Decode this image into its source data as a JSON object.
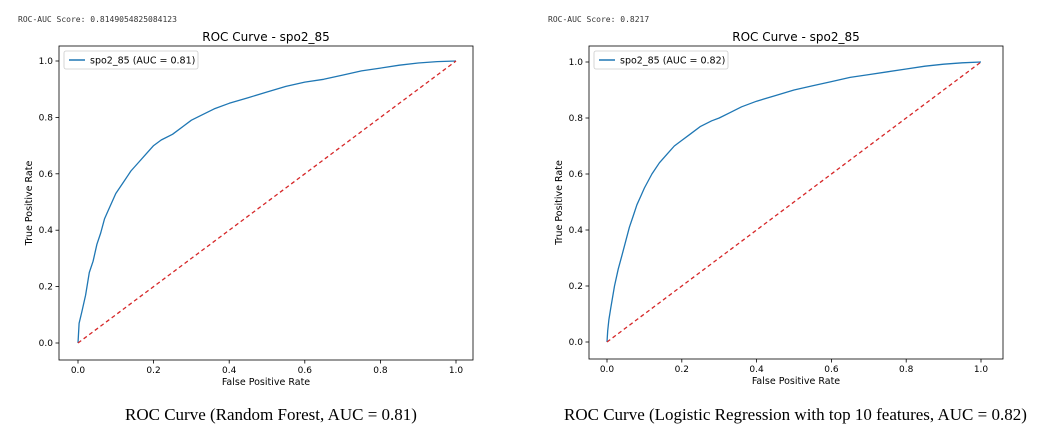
{
  "scores": [
    "ROC-AUC Score: 0.8149054825084123",
    "ROC-AUC Score: 0.8217"
  ],
  "captions": [
    "ROC Curve (Random Forest, AUC = 0.81)",
    "ROC Curve (Logistic Regression with top 10 features, AUC = 0.82)"
  ],
  "chart_data": [
    {
      "type": "line",
      "title": "ROC Curve - spo2_85",
      "xlabel": "False Positive Rate",
      "ylabel": "True Positive Rate",
      "xlim": [
        0.0,
        1.0
      ],
      "ylim": [
        0.0,
        1.0
      ],
      "xticks": [
        "0.0",
        "0.2",
        "0.4",
        "0.6",
        "0.8",
        "1.0"
      ],
      "yticks": [
        "0.0",
        "0.2",
        "0.4",
        "0.6",
        "0.8",
        "1.0"
      ],
      "legend_position": "upper-left",
      "grid": false,
      "series": [
        {
          "name": "spo2_85 (AUC = 0.81)",
          "color": "#1f77b4",
          "x": [
            0.0,
            0.003,
            0.01,
            0.02,
            0.03,
            0.04,
            0.05,
            0.06,
            0.07,
            0.08,
            0.09,
            0.1,
            0.12,
            0.14,
            0.16,
            0.18,
            0.2,
            0.22,
            0.25,
            0.28,
            0.3,
            0.33,
            0.36,
            0.4,
            0.45,
            0.5,
            0.55,
            0.6,
            0.65,
            0.7,
            0.75,
            0.8,
            0.85,
            0.9,
            0.95,
            1.0
          ],
          "y": [
            0.0,
            0.07,
            0.11,
            0.17,
            0.25,
            0.29,
            0.35,
            0.39,
            0.44,
            0.47,
            0.5,
            0.53,
            0.57,
            0.61,
            0.64,
            0.67,
            0.7,
            0.72,
            0.74,
            0.77,
            0.79,
            0.81,
            0.83,
            0.85,
            0.87,
            0.89,
            0.91,
            0.925,
            0.935,
            0.95,
            0.965,
            0.975,
            0.985,
            0.993,
            0.998,
            1.0
          ]
        },
        {
          "name": "",
          "color": "#d62728",
          "style": "dashed",
          "x": [
            0.0,
            1.0
          ],
          "y": [
            0.0,
            1.0
          ]
        }
      ]
    },
    {
      "type": "line",
      "title": "ROC Curve - spo2_85",
      "xlabel": "False Positive Rate",
      "ylabel": "True Positive Rate",
      "xlim": [
        0.0,
        1.0
      ],
      "ylim": [
        0.0,
        1.0
      ],
      "xticks": [
        "0.0",
        "0.2",
        "0.4",
        "0.6",
        "0.8",
        "1.0"
      ],
      "yticks": [
        "0.0",
        "0.2",
        "0.4",
        "0.6",
        "0.8",
        "1.0"
      ],
      "legend_position": "upper-left",
      "grid": false,
      "series": [
        {
          "name": "spo2_85 (AUC = 0.82)",
          "color": "#1f77b4",
          "x": [
            0.0,
            0.002,
            0.005,
            0.01,
            0.02,
            0.03,
            0.04,
            0.05,
            0.06,
            0.07,
            0.08,
            0.09,
            0.1,
            0.12,
            0.14,
            0.16,
            0.18,
            0.2,
            0.22,
            0.25,
            0.28,
            0.3,
            0.33,
            0.36,
            0.4,
            0.45,
            0.5,
            0.55,
            0.6,
            0.65,
            0.7,
            0.75,
            0.8,
            0.85,
            0.9,
            0.95,
            1.0
          ],
          "y": [
            0.0,
            0.04,
            0.08,
            0.12,
            0.2,
            0.26,
            0.31,
            0.36,
            0.41,
            0.45,
            0.49,
            0.52,
            0.55,
            0.6,
            0.64,
            0.67,
            0.7,
            0.72,
            0.74,
            0.77,
            0.79,
            0.8,
            0.82,
            0.84,
            0.86,
            0.88,
            0.9,
            0.915,
            0.93,
            0.945,
            0.955,
            0.965,
            0.975,
            0.985,
            0.992,
            0.997,
            1.0
          ]
        },
        {
          "name": "",
          "color": "#d62728",
          "style": "dashed",
          "x": [
            0.0,
            1.0
          ],
          "y": [
            0.0,
            1.0
          ]
        }
      ]
    }
  ]
}
